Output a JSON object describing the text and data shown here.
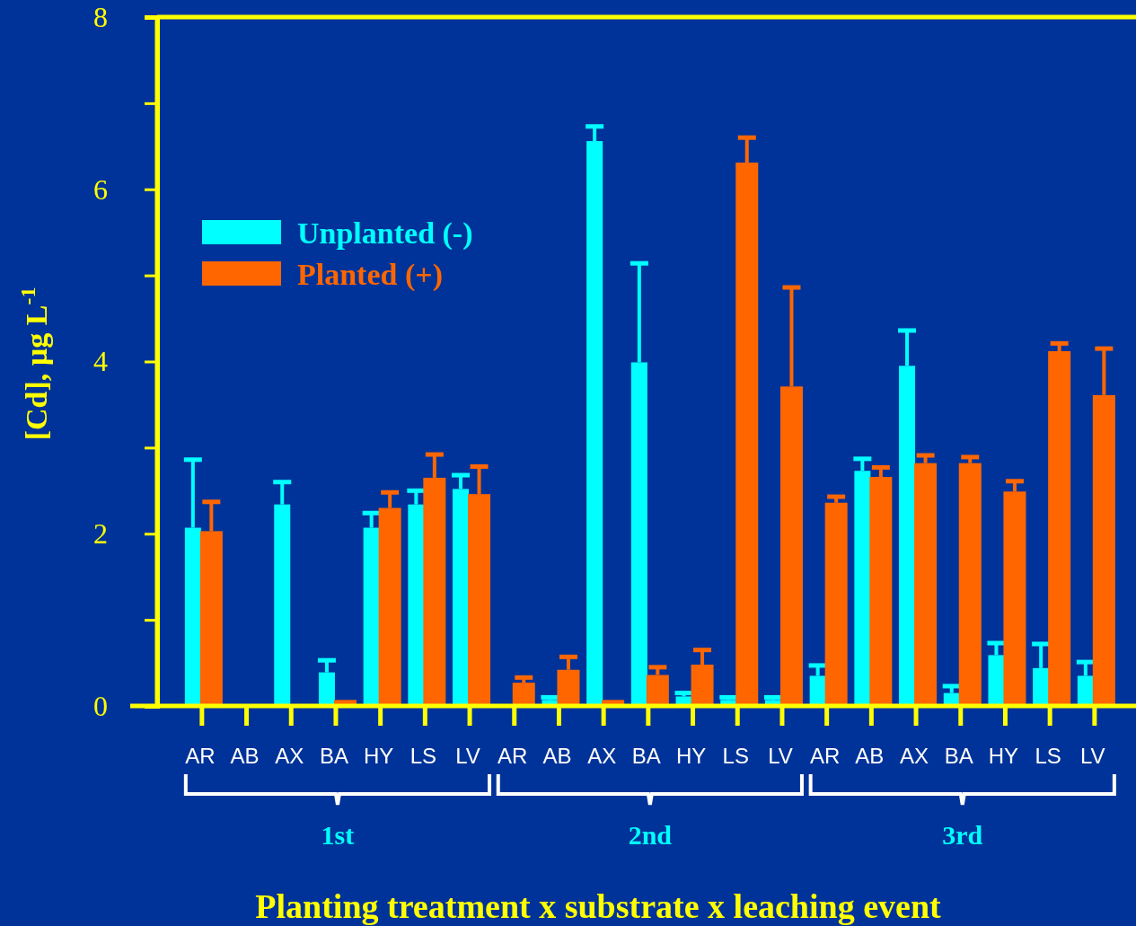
{
  "chart_data": {
    "type": "bar",
    "xlabel": "Planting treatment x substrate x leaching event",
    "ylabel": "[Cd], µg L$^{-1}$",
    "categories": [
      "AR",
      "AB",
      "AX",
      "BA",
      "HY",
      "LS",
      "LV",
      "AR",
      "AB",
      "AX",
      "BA",
      "HY",
      "LS",
      "LV",
      "AR",
      "AB",
      "AX",
      "BA",
      "HY",
      "LS",
      "LV"
    ],
    "series": [
      {
        "name": "Unplanted (-)",
        "color": "#00ffff",
        "values": [
          2.07,
          null,
          2.34,
          0.39,
          2.07,
          2.34,
          2.52,
          null,
          0.07,
          6.56,
          3.99,
          0.11,
          0.07,
          0.07,
          0.35,
          2.73,
          3.95,
          0.15,
          0.59,
          0.44,
          0.35
        ],
        "errors": [
          [
            2.07,
            2.86
          ],
          null,
          [
            2.34,
            2.6
          ],
          [
            0.39,
            0.53
          ],
          [
            2.07,
            2.24
          ],
          [
            2.34,
            2.5
          ],
          [
            2.52,
            2.68
          ],
          null,
          [
            0.07,
            0.1
          ],
          [
            6.56,
            6.73
          ],
          [
            3.99,
            5.14
          ],
          [
            0.11,
            0.15
          ],
          [
            0.07,
            0.1
          ],
          [
            0.07,
            0.1
          ],
          [
            0.35,
            0.47
          ],
          [
            2.73,
            2.87
          ],
          [
            3.95,
            4.36
          ],
          [
            0.15,
            0.23
          ],
          [
            0.59,
            0.73
          ],
          [
            0.44,
            0.72
          ],
          [
            0.35,
            0.51
          ]
        ]
      },
      {
        "name": "Planted (+)",
        "color": "#ff6600",
        "values": [
          2.03,
          null,
          null,
          0.07,
          2.3,
          2.65,
          2.46,
          0.27,
          0.42,
          0.07,
          0.36,
          0.48,
          6.31,
          3.71,
          2.36,
          2.66,
          2.82,
          2.82,
          2.49,
          4.12,
          3.61
        ],
        "errors": [
          [
            2.03,
            2.37
          ],
          null,
          null,
          null,
          [
            2.3,
            2.48
          ],
          [
            2.65,
            2.92
          ],
          [
            2.46,
            2.78
          ],
          [
            0.27,
            0.33
          ],
          [
            0.42,
            0.57
          ],
          null,
          [
            0.36,
            0.45
          ],
          [
            0.48,
            0.65
          ],
          [
            6.31,
            6.6
          ],
          [
            3.71,
            4.86
          ],
          [
            2.36,
            2.43
          ],
          [
            2.66,
            2.77
          ],
          [
            2.82,
            2.91
          ],
          [
            2.82,
            2.89
          ],
          [
            2.49,
            2.61
          ],
          [
            4.12,
            4.21
          ],
          [
            3.61,
            4.15
          ]
        ]
      }
    ],
    "ylim": [
      0,
      8
    ],
    "yticks": [
      0,
      {
        "value": 1,
        "label": null
      },
      2,
      {
        "value": 3,
        "label": null
      },
      4,
      {
        "value": 5,
        "label": null
      },
      6,
      {
        "value": 7,
        "label": null
      },
      8
    ],
    "grid": false,
    "legend": "top left",
    "annotations": [
      "1st",
      "2nd",
      "3rd"
    ]
  }
}
